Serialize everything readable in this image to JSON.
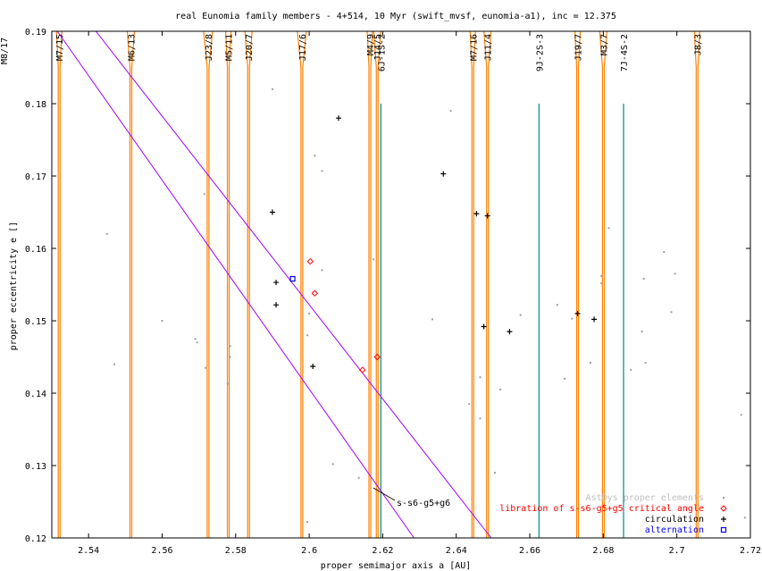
{
  "chart_data": {
    "type": "scatter",
    "title": "real Eunomia family members - 4+514, 10 Myr (swift_mvsf, eunomia-a1), inc = 12.375",
    "xlabel": "proper semimajor axis a [AU]",
    "ylabel": "proper eccentricity e []",
    "xlim": [
      2.53,
      2.72
    ],
    "ylim": [
      0.12,
      0.19
    ],
    "xticks": [
      "2.54",
      "2.56",
      "2.58",
      "2.6",
      "2.62",
      "2.64",
      "2.66",
      "2.68",
      "2.7",
      "2.72"
    ],
    "xtick_values": [
      2.54,
      2.56,
      2.58,
      2.6,
      2.62,
      2.64,
      2.66,
      2.68,
      2.7,
      2.72
    ],
    "yticks": [
      "0.12",
      "0.13",
      "0.14",
      "0.15",
      "0.16",
      "0.17",
      "0.18",
      "0.19"
    ],
    "ytick_values": [
      0.12,
      0.13,
      0.14,
      0.15,
      0.16,
      0.17,
      0.18,
      0.19
    ],
    "grid": false,
    "legend_position": "bottom-right",
    "colors": {
      "proper": "#a0a0a0",
      "libration": "#ff0000",
      "circulation": "#000000",
      "alternation": "#0000ff",
      "resonance": "#ff8000",
      "secular": "#a000ff",
      "three_body": "#008b8b"
    },
    "resonances": [
      {
        "label": "M7/15",
        "a": 2.532
      },
      {
        "label": "M6/13",
        "a": 2.5515
      },
      {
        "label": "J23/8",
        "a": 2.5725
      },
      {
        "label": "M5/11",
        "a": 2.578
      },
      {
        "label": "J20/7",
        "a": 2.5835
      },
      {
        "label": "J17/6",
        "a": 2.598
      },
      {
        "label": "M4/9",
        "a": 2.6165
      },
      {
        "label": "J14/5",
        "a": 2.6185
      },
      {
        "label": "6J-1S-2",
        "a": 2.6195
      },
      {
        "label": "M7/16",
        "a": 2.6445
      },
      {
        "label": "J11/4",
        "a": 2.6485
      },
      {
        "label": "9J-2S-3",
        "a": 2.6625
      },
      {
        "label": "J19/7",
        "a": 2.673
      },
      {
        "label": "M3/7",
        "a": 2.68
      },
      {
        "label": "7J-4S-2",
        "a": 2.6855
      },
      {
        "label": "J8/3",
        "a": 2.7055
      }
    ],
    "top_left_label": "M8/17",
    "secular_label": "s-s6-g5+g6",
    "secular_lines": [
      {
        "x1": 2.542,
        "y1": 0.19,
        "x2": 2.6495,
        "y2": 0.12
      },
      {
        "x1": 2.5315,
        "y1": 0.19,
        "x2": 2.6285,
        "y2": 0.12
      }
    ],
    "series": [
      {
        "name": "AstDys proper elements",
        "marker": "dot",
        "points": [
          [
            2.545,
            0.162
          ],
          [
            2.547,
            0.144
          ],
          [
            2.56,
            0.15
          ],
          [
            2.569,
            0.1475
          ],
          [
            2.5695,
            0.147
          ],
          [
            2.5715,
            0.1675
          ],
          [
            2.5718,
            0.1435
          ],
          [
            2.578,
            0.1413
          ],
          [
            2.5785,
            0.1465
          ],
          [
            2.5785,
            0.145
          ],
          [
            2.59,
            0.182
          ],
          [
            2.5995,
            0.1222
          ],
          [
            2.5995,
            0.148
          ],
          [
            2.6,
            0.151
          ],
          [
            2.6015,
            0.1728
          ],
          [
            2.6035,
            0.1707
          ],
          [
            2.6035,
            0.157
          ],
          [
            2.6065,
            0.1302
          ],
          [
            2.6135,
            0.1283
          ],
          [
            2.6175,
            0.1585
          ],
          [
            2.6335,
            0.1502
          ],
          [
            2.6385,
            0.179
          ],
          [
            2.6435,
            0.1385
          ],
          [
            2.6465,
            0.1422
          ],
          [
            2.6465,
            0.1365
          ],
          [
            2.6505,
            0.129
          ],
          [
            2.652,
            0.1405
          ],
          [
            2.6575,
            0.1508
          ],
          [
            2.6675,
            0.1522
          ],
          [
            2.6715,
            0.1503
          ],
          [
            2.6695,
            0.142
          ],
          [
            2.6765,
            0.1442
          ],
          [
            2.6795,
            0.1552
          ],
          [
            2.6795,
            0.1562
          ],
          [
            2.6815,
            0.1628
          ],
          [
            2.6875,
            0.1432
          ],
          [
            2.6905,
            0.1485
          ],
          [
            2.6915,
            0.1442
          ],
          [
            2.691,
            0.1558
          ],
          [
            2.6965,
            0.1595
          ],
          [
            2.6985,
            0.1512
          ],
          [
            2.6995,
            0.1565
          ],
          [
            2.7175,
            0.137
          ],
          [
            2.7185,
            0.1228
          ]
        ]
      },
      {
        "name": "libration of s-s6-g5+g5 critical angle",
        "marker": "diamond",
        "points": [
          [
            2.6003,
            0.1582
          ],
          [
            2.6015,
            0.1538
          ],
          [
            2.6145,
            0.1432
          ],
          [
            2.6185,
            0.145
          ]
        ]
      },
      {
        "name": "circulation",
        "marker": "plus",
        "points": [
          [
            2.59,
            0.165
          ],
          [
            2.591,
            0.1553
          ],
          [
            2.591,
            0.1522
          ],
          [
            2.601,
            0.1437
          ],
          [
            2.608,
            0.178
          ],
          [
            2.6365,
            0.1703
          ],
          [
            2.6455,
            0.1648
          ],
          [
            2.6475,
            0.1492
          ],
          [
            2.6485,
            0.1645
          ],
          [
            2.6545,
            0.1485
          ],
          [
            2.673,
            0.151
          ],
          [
            2.6775,
            0.1502
          ]
        ]
      },
      {
        "name": "alternation",
        "marker": "square",
        "points": [
          [
            2.5955,
            0.1558
          ]
        ]
      }
    ]
  }
}
